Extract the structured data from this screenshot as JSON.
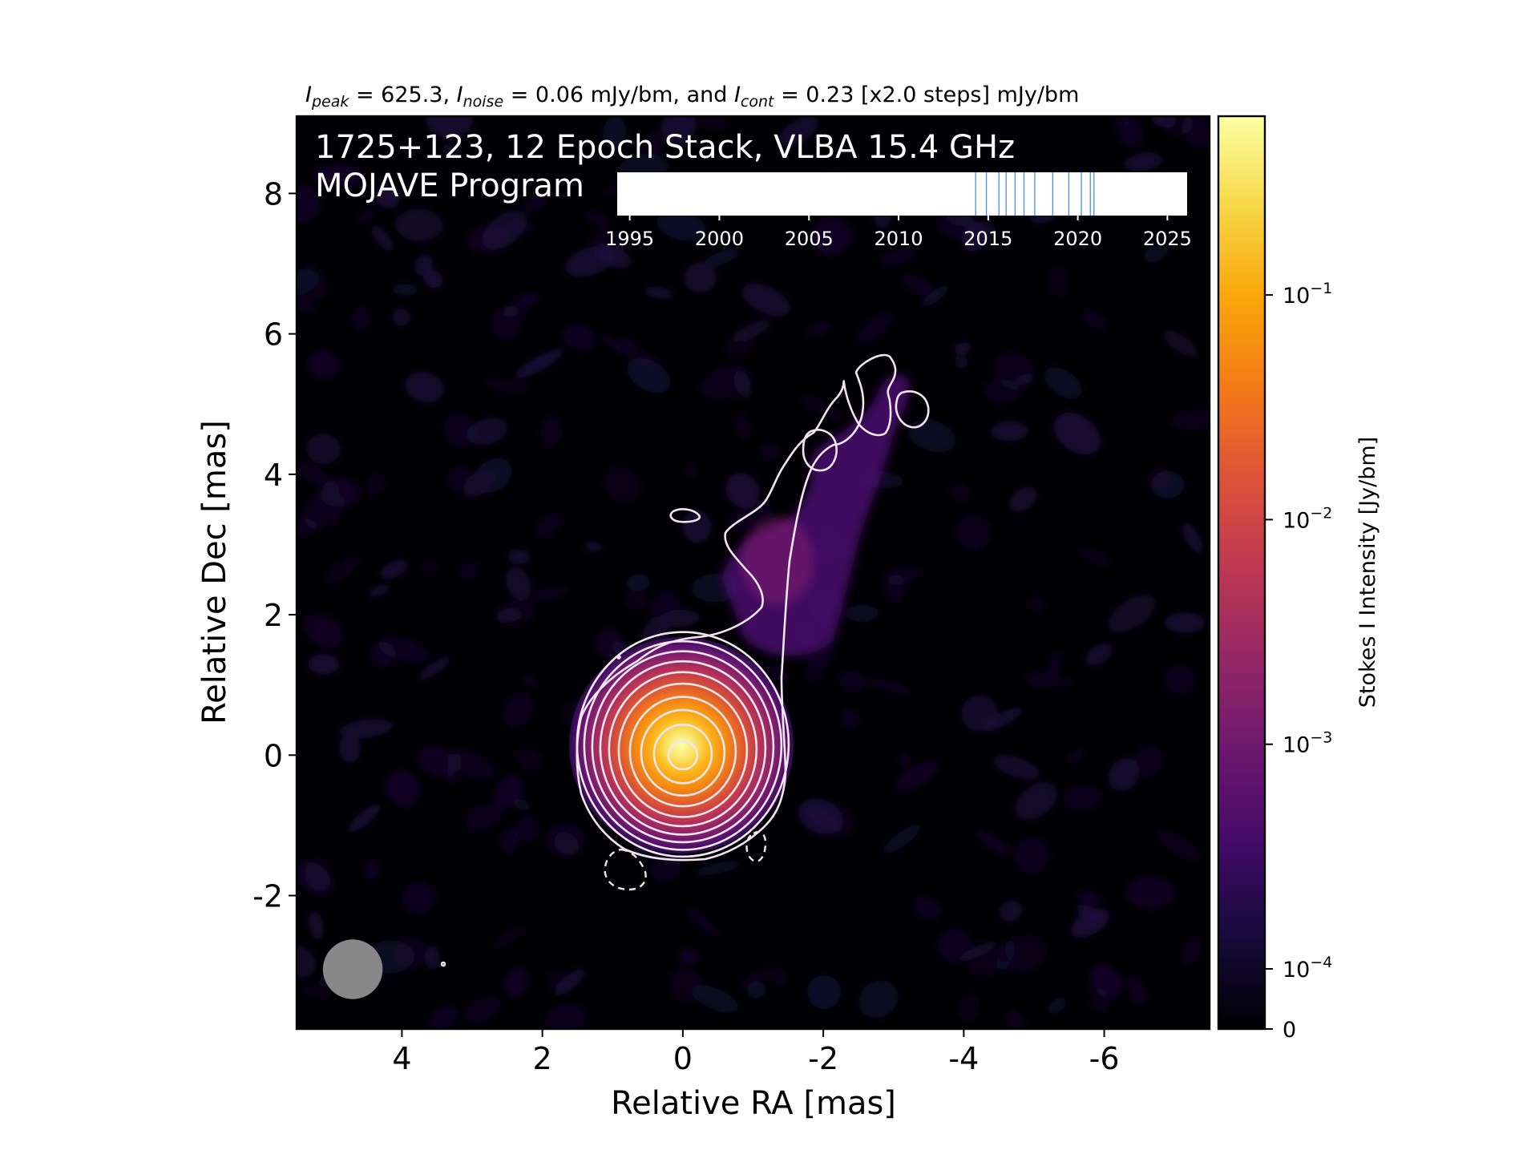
{
  "chart_data": {
    "type": "heatmap",
    "header": {
      "peak_sym": "I",
      "peak_sub": "peak",
      "peak_val": " = 625.3, ",
      "noise_sym": "I",
      "noise_sub": "noise",
      "noise_val": " = 0.06 mJy/bm, and ",
      "cont_sym": "I",
      "cont_sub": "cont",
      "cont_val": " = 0.23 [x2.0 steps] mJy/bm"
    },
    "title_line1": "1725+123, 12 Epoch Stack, VLBA 15.4 GHz",
    "title_line2": "MOJAVE Program",
    "xlabel": "Relative RA [mas]",
    "ylabel": "Relative Dec [mas]",
    "xlim": [
      5.5,
      -7.5
    ],
    "ylim": [
      -3.9,
      9.1
    ],
    "x_ticks": [
      4,
      2,
      0,
      -2,
      -4,
      -6
    ],
    "x_tick_labels": [
      "4",
      "2",
      "0",
      "-2",
      "-4",
      "-6"
    ],
    "y_ticks": [
      8,
      6,
      4,
      2,
      0,
      -2
    ],
    "y_tick_labels": [
      "8",
      "6",
      "4",
      "2",
      "0",
      "-2"
    ],
    "colorbar": {
      "label": "Stokes I Intensity [Jy/bm]",
      "scale": "log",
      "colormap": "inferno",
      "ticks": [
        {
          "value": 0.1,
          "base": "10",
          "exp": "−1"
        },
        {
          "value": 0.01,
          "base": "10",
          "exp": "−2"
        },
        {
          "value": 0.001,
          "base": "10",
          "exp": "−3"
        },
        {
          "value": 0.0001,
          "base": "10",
          "exp": "−4"
        },
        {
          "value": 0,
          "base": "0",
          "exp": ""
        }
      ]
    },
    "epochs": {
      "axis_min": 1994.3,
      "axis_max": 2026.1,
      "tick_years": [
        1995,
        2000,
        2005,
        2010,
        2015,
        2020,
        2025
      ],
      "tick_labels": [
        "1995",
        "2000",
        "2005",
        "2010",
        "2015",
        "2020",
        "2025"
      ],
      "epoch_dates": [
        2014.3,
        2014.9,
        2015.6,
        2016.0,
        2016.5,
        2017.0,
        2017.6,
        2018.6,
        2019.5,
        2020.2,
        2020.7,
        2020.9
      ],
      "line_color": "#4a90d9"
    },
    "beam": {
      "center": [
        4.7,
        -3.05
      ],
      "major": 0.85,
      "minor": 0.85,
      "color": "#888888"
    },
    "peak_position": [
      0,
      0
    ],
    "colors": {
      "background": "#000004",
      "contour": "#f2e6ee"
    }
  }
}
